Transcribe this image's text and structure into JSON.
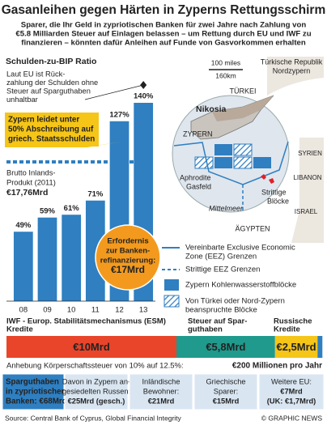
{
  "title": "Gasanleihen gegen Härten in Zyperns Rettungsschirm",
  "subtitle": [
    "Sparer, die Ihr Geld in zypriotischen Banken für zwei Jahre nach Zahlung von",
    "€5.8 Milliarden Steuer auf Einlagen belassen – um Rettung durch EU und IWF zu",
    "finanzieren – könnten dafür Anleihen auf Funde von Gasvorkommen erhalten"
  ],
  "chart_data": [
    {
      "type": "bar",
      "title": "Schulden-zu-BIP Ratio",
      "categories": [
        "08",
        "09",
        "10",
        "11",
        "12",
        "13"
      ],
      "values": [
        49,
        59,
        61,
        71,
        127,
        140
      ],
      "value_labels": [
        "49%",
        "59%",
        "61%",
        "71%",
        "127%",
        "140%"
      ],
      "color": "#2f7fc1",
      "note": [
        "Laut EU ist Rück-",
        "zahlung der Schulden ohne",
        "Steuer auf Sparguthaben",
        "unhaltbar"
      ],
      "callout": [
        "Zypern leidet unter",
        "50% Abschreibung auf",
        "griech. Staatsschulden"
      ],
      "gdp": [
        "Brutto Inlands-",
        "Produkt (2011)",
        "€17,76Mrd"
      ],
      "refinancing": [
        "Erfordernis",
        "zur Banken-",
        "refinanzierung:",
        "€17Mrd"
      ]
    },
    {
      "type": "stacked_bar",
      "series": [
        {
          "name": [
            "IWF - Europ. Stabilitätsmechanismus (ESM)",
            "Kredite"
          ],
          "color": "#e8452a",
          "values": [
            10
          ],
          "value_labels": [
            "€10Mrd"
          ]
        },
        {
          "name": [
            "Steuer auf Spar-",
            "guthaben"
          ],
          "color": "#1f9a8c",
          "values": [
            5.8
          ],
          "value_labels": [
            "€5,8Mrd"
          ]
        },
        {
          "name": [
            "Russische",
            "Kredite"
          ],
          "color": "#f5c518",
          "values": [
            2.5
          ],
          "value_labels": [
            "€2,5Mrd"
          ]
        }
      ]
    }
  ],
  "map": {
    "scale": [
      "100 miles",
      "160km"
    ],
    "north": [
      "Türkische Republik",
      "Nordzypern"
    ],
    "turkey": "TÜRKEI",
    "capital": "Nikosia",
    "cyprus": "ZYPERN",
    "field": [
      "Aphrodite",
      "Gasfeld"
    ],
    "disputed": [
      "Strittige",
      "Blöcke"
    ],
    "sea": "Mittelmeer",
    "lebanon": "LIBANON",
    "israel": "ISRAEL",
    "egypt": "ÄGYPTEN",
    "syria": "SYRIEN"
  },
  "legend": [
    [
      "Vereinbarte Exclusive Economic",
      "Zone (EEZ) Grenzen"
    ],
    [
      "Strittige EEZ Grenzen"
    ],
    [
      "Zypern Kohlenwasserstoffblöcke"
    ],
    [
      "Von Türkei oder Nord-Zypern",
      "beanspruchte Blöcke"
    ]
  ],
  "tax_note": {
    "text": "Anhebung Körperschaftssteuer von 10% auf 12.5%:",
    "value": "€200 Millionen pro Jahr"
  },
  "deposits": [
    [
      "Sparguthaben",
      "in zypriotischen",
      "Banken: €68Mrd"
    ],
    [
      "Davon in Zypern an-",
      "gesiedelten Russen:",
      "€25Mrd (gesch.)"
    ],
    [
      "Inländische",
      "Bewohner:",
      "€21Mrd"
    ],
    [
      "Griechische",
      "Sparer:",
      "€15Mrd"
    ],
    [
      "Weitere EU:",
      "€7Mrd",
      "(UK: €1,7Mrd)"
    ]
  ],
  "footer": {
    "source": "Source: Central Bank of Cyprus, Global Financial Integrity",
    "credit": "© GRAPHIC NEWS"
  }
}
